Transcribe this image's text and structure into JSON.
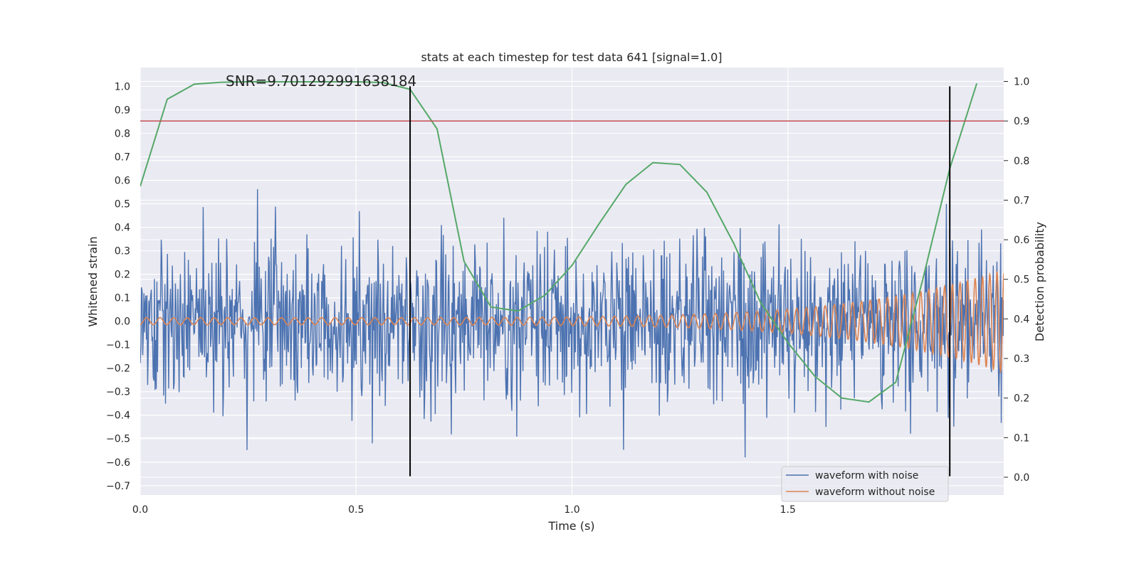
{
  "chart_data": {
    "type": "line",
    "title": "stats at each timestep for test data 641 [signal=1.0]",
    "xlabel": "Time (s)",
    "ylabel": "Whitened strain",
    "y2label": "Detection probability",
    "xlim": [
      0.0,
      2.0
    ],
    "ylim": [
      -0.74,
      1.08
    ],
    "y2lim": [
      -0.045,
      1.035
    ],
    "xticks": [
      0.0,
      0.5,
      1.0,
      1.5
    ],
    "xtick_labels": [
      "0.0",
      "0.5",
      "1.0",
      "1.5"
    ],
    "yticks": [
      -0.7,
      -0.6,
      -0.5,
      -0.4,
      -0.3,
      -0.2,
      -0.1,
      0.0,
      0.1,
      0.2,
      0.3,
      0.4,
      0.5,
      0.6,
      0.7,
      0.8,
      0.9,
      1.0
    ],
    "ytick_labels": [
      "−0.7",
      "−0.6",
      "−0.5",
      "−0.4",
      "−0.3",
      "−0.2",
      "−0.1",
      "0.0",
      "0.1",
      "0.2",
      "0.3",
      "0.4",
      "0.5",
      "0.6",
      "0.7",
      "0.8",
      "0.9",
      "1.0"
    ],
    "y2ticks": [
      0.0,
      0.1,
      0.2,
      0.3,
      0.4,
      0.5,
      0.6,
      0.7,
      0.8,
      0.9,
      1.0
    ],
    "y2tick_labels": [
      "0.0",
      "0.1",
      "0.2",
      "0.3",
      "0.4",
      "0.5",
      "0.6",
      "0.7",
      "0.8",
      "0.9",
      "1.0"
    ],
    "grid": true,
    "legend_position": "bottom-right",
    "annotation": "SNR=9.701292991638184",
    "threshold": {
      "value": 0.9,
      "axis": "right",
      "color": "#c44e52"
    },
    "vertical_markers": {
      "x": [
        0.625,
        1.875
      ],
      "y_range": [
        -0.66,
        1.0
      ],
      "color": "#000000"
    },
    "series": [
      {
        "name": "waveform with noise",
        "axis": "left",
        "color": "#4c72b0",
        "noise": {
          "samples": 1400,
          "std": 0.17,
          "clip": [
            -0.66,
            0.75
          ]
        }
      },
      {
        "name": "waveform without noise",
        "axis": "left",
        "color": "#dd8452",
        "chirp": {
          "base_freq_hz": 32,
          "freq_growth": 0.9,
          "amp_start": 0.015,
          "amp_end": 0.22
        }
      },
      {
        "axis": "right",
        "color": "#55a868",
        "x": [
          0.0,
          0.0625,
          0.125,
          0.1875,
          0.25,
          0.3125,
          0.375,
          0.4375,
          0.5,
          0.5625,
          0.625,
          0.6875,
          0.75,
          0.8125,
          0.875,
          0.9375,
          1.0,
          1.0625,
          1.125,
          1.1875,
          1.25,
          1.3125,
          1.375,
          1.4375,
          1.5,
          1.5625,
          1.625,
          1.6875,
          1.75,
          1.8125,
          1.875,
          1.9375
        ],
        "y": [
          0.735,
          0.955,
          0.993,
          0.998,
          0.999,
          0.999,
          0.999,
          0.999,
          0.999,
          0.997,
          0.98,
          0.88,
          0.545,
          0.43,
          0.42,
          0.46,
          0.535,
          0.64,
          0.74,
          0.795,
          0.79,
          0.72,
          0.59,
          0.44,
          0.34,
          0.255,
          0.2,
          0.19,
          0.24,
          0.5,
          0.78,
          0.995
        ]
      }
    ]
  }
}
